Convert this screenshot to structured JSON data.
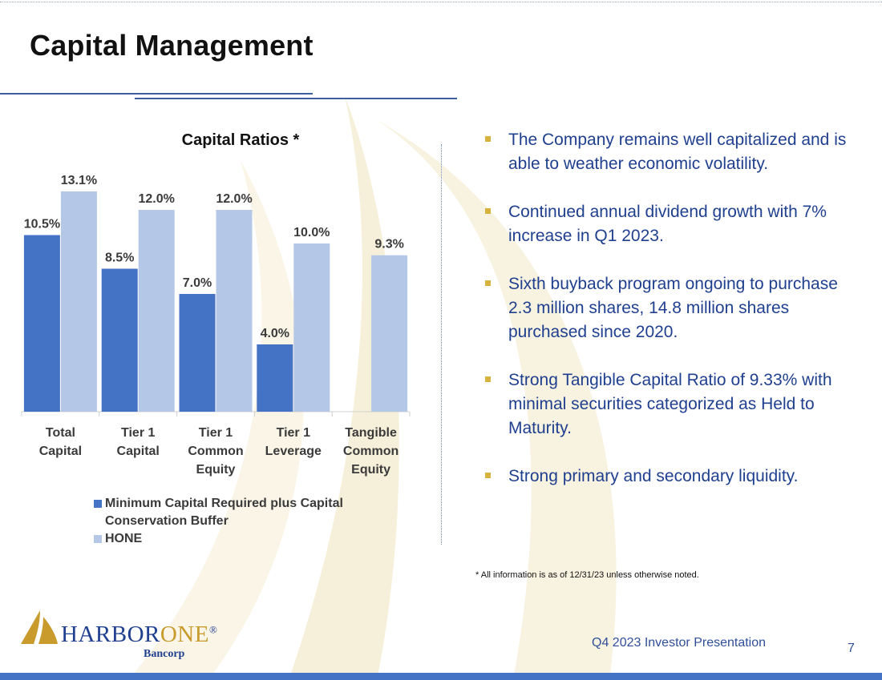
{
  "slide": {
    "title": "Capital Management",
    "footnote": "* All information is as of 12/31/23 unless otherwise noted.",
    "footer_label": "Q4 2023 Investor Presentation",
    "page_number": "7"
  },
  "logo": {
    "name_part1": "HARBOR",
    "name_part2": "ONE",
    "registered": "®",
    "sub": "Bancorp"
  },
  "bullets": [
    "The Company remains well capitalized and is able to weather economic volatility.",
    "Continued annual dividend growth with 7% increase in Q1 2023.",
    "Sixth buyback program ongoing to purchase 2.3 million shares, 14.8 million shares purchased since 2020.",
    "Strong Tangible Capital Ratio of 9.33% with minimal securities categorized as Held to Maturity.",
    "Strong primary and secondary liquidity."
  ],
  "colors": {
    "series_min": "#4472c4",
    "series_hone": "#b4c7e7",
    "bullet": "#d7b23d",
    "accent": "#1f3f8f"
  },
  "chart_data": {
    "type": "bar",
    "title": "Capital Ratios *",
    "categories": [
      [
        "Total",
        "Capital"
      ],
      [
        "Tier 1",
        "Capital"
      ],
      [
        "Tier 1",
        "Common",
        "Equity"
      ],
      [
        "Tier 1",
        "Leverage"
      ],
      [
        "Tangible",
        "Common",
        "Equity"
      ]
    ],
    "series": [
      {
        "name": "Minimum Capital Required plus Capital Conservation Buffer",
        "values": [
          10.5,
          8.5,
          7.0,
          4.0,
          null
        ],
        "labels": [
          "10.5%",
          "8.5%",
          "7.0%",
          "4.0%",
          ""
        ]
      },
      {
        "name": "HONE",
        "values": [
          13.1,
          12.0,
          12.0,
          10.0,
          9.3
        ],
        "labels": [
          "13.1%",
          "12.0%",
          "12.0%",
          "10.0%",
          "9.3%"
        ]
      }
    ],
    "ylim": [
      0,
      14
    ],
    "grid": false,
    "legend_position": "bottom"
  }
}
